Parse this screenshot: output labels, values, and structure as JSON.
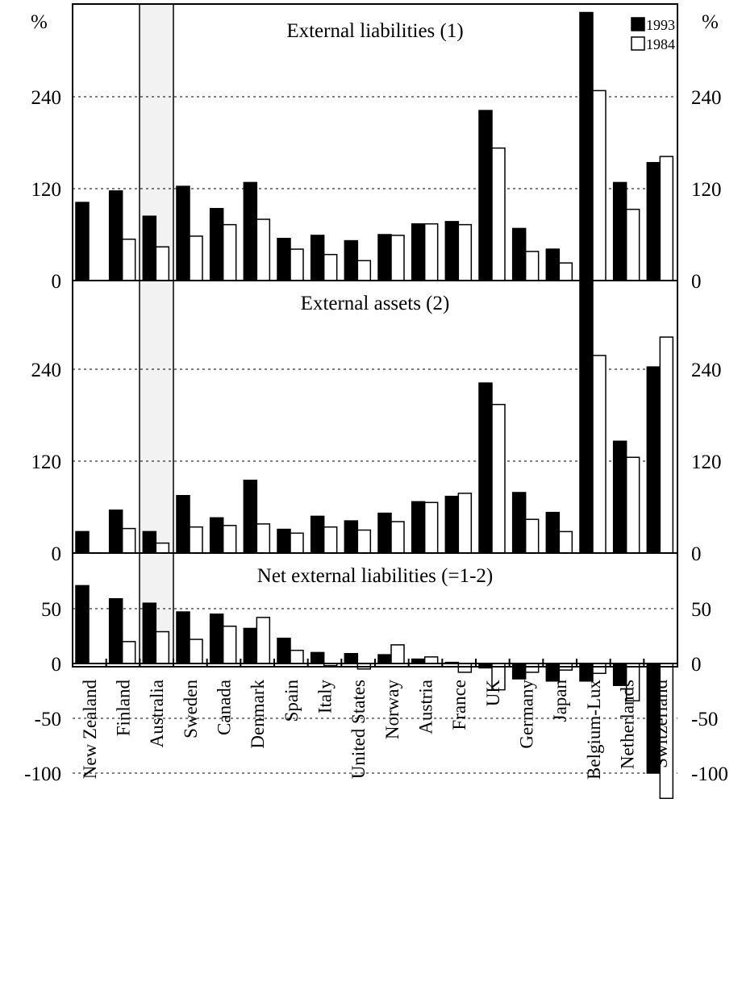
{
  "chart_data": {
    "type": "bar",
    "unit_label": "%",
    "categories": [
      "New Zealand",
      "Finland",
      "Australia",
      "Sweden",
      "Canada",
      "Denmark",
      "Spain",
      "Italy",
      "United States",
      "Norway",
      "Austria",
      "France",
      "UK",
      "Germany",
      "Japan",
      "Belgium-Lux",
      "Netherlands",
      "Switzerland"
    ],
    "highlight_category": "Australia",
    "legend": {
      "placement": "top-right",
      "entries": [
        "1993",
        "1984"
      ]
    },
    "panels": [
      {
        "title": "External liabilities (1)",
        "ylim": [
          0,
          300
        ],
        "yticks": [
          "0",
          "120",
          "240"
        ],
        "ytick_values": [
          0,
          120,
          240
        ],
        "grid": true,
        "series": [
          {
            "name": "1993",
            "color": "#000000",
            "values": [
              102,
              117,
              84,
              123,
              94,
              128,
              55,
              59,
              52,
              60,
              74,
              77,
              222,
              68,
              41,
              350,
              128,
              154
            ]
          },
          {
            "name": "1984",
            "color": "#ffffff",
            "values": [
              null,
              54,
              44,
              58,
              73,
              80,
              41,
              34,
              26,
              59,
              74,
              73,
              173,
              38,
              23,
              248,
              93,
              162
            ]
          }
        ]
      },
      {
        "title": "External assets (2)",
        "ylim": [
          0,
          360
        ],
        "yticks": [
          "0",
          "120",
          "240"
        ],
        "ytick_values": [
          0,
          120,
          240
        ],
        "grid": true,
        "series": [
          {
            "name": "1993",
            "color": "#000000",
            "values": [
              28,
              56,
              28,
              75,
              46,
              95,
              31,
              48,
              42,
              52,
              67,
              74,
              222,
              79,
              53,
              360,
              146,
              243
            ]
          },
          {
            "name": "1984",
            "color": "#ffffff",
            "values": [
              null,
              32,
              13,
              34,
              36,
              38,
              26,
              34,
              30,
              41,
              66,
              78,
              194,
              44,
              28,
              258,
              125,
              282
            ]
          }
        ]
      },
      {
        "title": "Net external liabilities (=1-2)",
        "ylim": [
          -125,
          75
        ],
        "yticks": [
          "-100",
          "-50",
          "0",
          "50"
        ],
        "ytick_values": [
          -100,
          -50,
          0,
          50
        ],
        "grid": true,
        "series": [
          {
            "name": "1993",
            "color": "#000000",
            "values": [
              71,
              59,
              55,
              47,
              45,
              32,
              23,
              10,
              9,
              8,
              4,
              1,
              -4,
              -14,
              -16,
              -16,
              -20,
              -100
            ]
          },
          {
            "name": "1984",
            "color": "#ffffff",
            "values": [
              null,
              20,
              29,
              22,
              34,
              42,
              12,
              -2,
              -5,
              17,
              6,
              -8,
              -24,
              -8,
              -6,
              -9,
              -34,
              -123
            ]
          }
        ]
      }
    ]
  }
}
